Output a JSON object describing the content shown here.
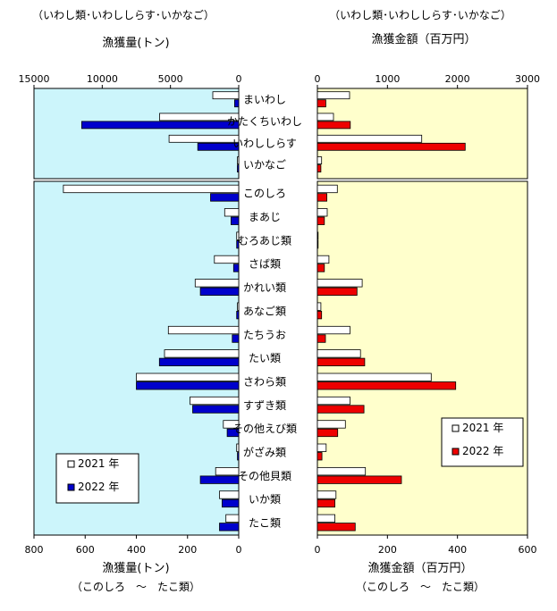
{
  "chart_data": {
    "type": "bar",
    "categories_top": [
      "まいわし",
      "かたくちいわし",
      "いわししらす",
      "いかなご"
    ],
    "categories_bottom": [
      "このしろ",
      "まあじ",
      "むろあじ類",
      "さば類",
      "かれい類",
      "あなご類",
      "たちうお",
      "たい類",
      "さわら類",
      "すずき類",
      "その他えび類",
      "がざみ類",
      "その他貝類",
      "いか類",
      "たこ類"
    ],
    "legend": [
      "2021 年",
      "2022 年"
    ],
    "colors": {
      "series_2021": "#ffffff",
      "series_2022_quantity": "#0000cc",
      "series_2022_value": "#ee0000",
      "bg_quantity": "#ccf5fb",
      "bg_value": "#ffffcc",
      "outline": "#000000"
    },
    "quantity": {
      "title_note": "（いわし類･いわししらす･いかなご）",
      "title": "漁獲量(トン)",
      "top_ticks": [
        "15000",
        "10000",
        "5000",
        "0"
      ],
      "top_xlim": [
        0,
        15000
      ],
      "bottom_ticks": [
        "800",
        "600",
        "400",
        "200",
        "0"
      ],
      "bottom_xlim": [
        0,
        800
      ],
      "xlabel": "漁獲量(トン)",
      "xlabel_note": "（このしろ　～　たこ類）",
      "top_series": [
        {
          "name": "2021 年",
          "values": [
            1900,
            5800,
            5100,
            100
          ]
        },
        {
          "name": "2022 年",
          "values": [
            300,
            11500,
            3000,
            100
          ]
        }
      ],
      "bottom_series": [
        {
          "name": "2021 年",
          "values": [
            685,
            55,
            8,
            95,
            170,
            5,
            275,
            290,
            400,
            190,
            60,
            8,
            90,
            75,
            50
          ]
        },
        {
          "name": "2022 年",
          "values": [
            110,
            30,
            8,
            20,
            150,
            8,
            25,
            310,
            400,
            180,
            45,
            5,
            150,
            65,
            75
          ]
        }
      ]
    },
    "value": {
      "title_note": "（いわし類･いわししらす･いかなご）",
      "title": "漁獲金額（百万円）",
      "top_ticks": [
        "0",
        "1000",
        "2000",
        "3000"
      ],
      "top_xlim": [
        0,
        3000
      ],
      "bottom_ticks": [
        "0",
        "200",
        "400",
        "600"
      ],
      "bottom_xlim": [
        0,
        600
      ],
      "xlabel": "漁獲金額（百万円）",
      "xlabel_note": "（このしろ　～　たこ類）",
      "top_series": [
        {
          "name": "2021 年",
          "values": [
            460,
            230,
            1490,
            60
          ]
        },
        {
          "name": "2022 年",
          "values": [
            120,
            470,
            2110,
            50
          ]
        }
      ],
      "bottom_series": [
        {
          "name": "2021 年",
          "values": [
            57,
            28,
            2,
            33,
            128,
            10,
            93,
            123,
            325,
            93,
            80,
            25,
            137,
            53,
            50
          ]
        },
        {
          "name": "2022 年",
          "values": [
            27,
            20,
            2,
            20,
            113,
            12,
            23,
            135,
            395,
            133,
            58,
            13,
            240,
            50,
            108
          ]
        }
      ]
    }
  }
}
